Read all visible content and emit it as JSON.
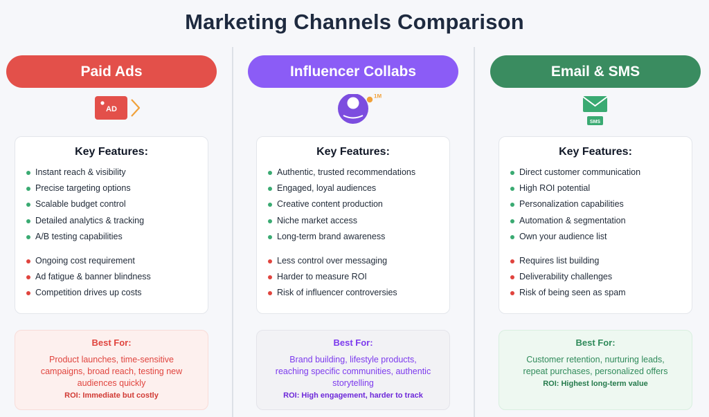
{
  "title": "Marketing Channels Comparison",
  "colors": {
    "paid": "#e3504a",
    "influencer": "#8b5cf6",
    "email": "#3a8c60",
    "pro_dot": "#3aaa72",
    "con_dot": "#e0443e"
  },
  "columns": [
    {
      "name": "Paid Ads",
      "icon": "ad-tag-icon",
      "icon_text": "AD",
      "card_title": "Key Features:",
      "pros": [
        "Instant reach & visibility",
        "Precise targeting options",
        "Scalable budget control",
        "Detailed analytics & tracking",
        "A/B testing capabilities"
      ],
      "cons": [
        "Ongoing cost requirement",
        "Ad fatigue & banner blindness",
        "Competition drives up costs"
      ],
      "best_title": "Best For:",
      "best_text": "Product launches, time-sensitive campaigns, broad reach, testing new audiences quickly",
      "roi": "ROI: Immediate but costly"
    },
    {
      "name": "Influencer Collabs",
      "icon": "influencer-avatar-icon",
      "icon_text": "1M",
      "card_title": "Key Features:",
      "pros": [
        "Authentic, trusted recommendations",
        "Engaged, loyal audiences",
        "Creative content production",
        "Niche market access",
        "Long-term brand awareness"
      ],
      "cons": [
        "Less control over messaging",
        "Harder to measure ROI",
        "Risk of influencer controversies"
      ],
      "best_title": "Best For:",
      "best_text": "Brand building, lifestyle products, reaching specific communities, authentic storytelling",
      "roi": "ROI: High engagement, harder to track"
    },
    {
      "name": "Email & SMS",
      "icon": "envelope-sms-icon",
      "icon_text": "SMS",
      "card_title": "Key Features:",
      "pros": [
        "Direct customer communication",
        "High ROI potential",
        "Personalization capabilities",
        "Automation & segmentation",
        "Own your audience list"
      ],
      "cons": [
        "Requires list building",
        "Deliverability challenges",
        "Risk of being seen as spam"
      ],
      "best_title": "Best For:",
      "best_text": "Customer retention, nurturing leads, repeat purchases, personalized offers",
      "roi": "ROI: Highest long-term value"
    }
  ]
}
